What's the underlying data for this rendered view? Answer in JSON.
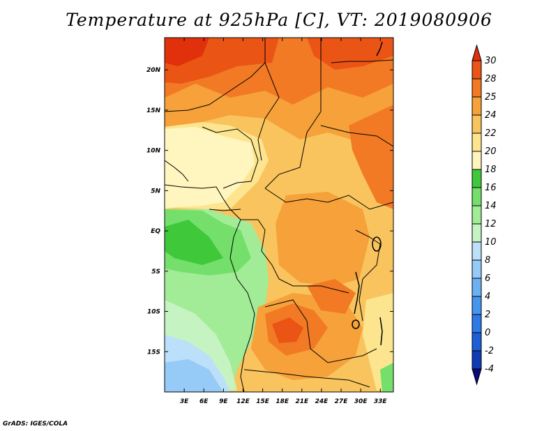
{
  "title": "Temperature at 925hPa [C], VT: 2019080906",
  "credit": "GrADS: IGES/COLA",
  "map": {
    "lon_range": [
      0,
      35
    ],
    "lat_range": [
      -20,
      24
    ],
    "lon_ticks": [
      {
        "value": 3,
        "label": "3E"
      },
      {
        "value": 6,
        "label": "6E"
      },
      {
        "value": 9,
        "label": "9E"
      },
      {
        "value": 12,
        "label": "12E"
      },
      {
        "value": 15,
        "label": "15E"
      },
      {
        "value": 18,
        "label": "18E"
      },
      {
        "value": 21,
        "label": "21E"
      },
      {
        "value": 24,
        "label": "24E"
      },
      {
        "value": 27,
        "label": "27E"
      },
      {
        "value": 30,
        "label": "30E"
      },
      {
        "value": 33,
        "label": "33E"
      }
    ],
    "lat_ticks": [
      {
        "value": 20,
        "label": "20N"
      },
      {
        "value": 15,
        "label": "15N"
      },
      {
        "value": 10,
        "label": "10N"
      },
      {
        "value": 5,
        "label": "5N"
      },
      {
        "value": 0,
        "label": "EQ"
      },
      {
        "value": -5,
        "label": "5S"
      },
      {
        "value": -10,
        "label": "10S"
      },
      {
        "value": -15,
        "label": "15S"
      }
    ]
  },
  "colorbar": {
    "labels": [
      "-4",
      "-2",
      "0",
      "2",
      "4",
      "6",
      "8",
      "10",
      "12",
      "14",
      "16",
      "18",
      "20",
      "22",
      "24",
      "25",
      "28",
      "30"
    ],
    "colors": [
      "#0a0a7a",
      "#0f3ab4",
      "#1a5fd6",
      "#2b7ae8",
      "#4596ee",
      "#6cb2f2",
      "#95cbf6",
      "#bcdffa",
      "#c6f3c2",
      "#a2ec98",
      "#74df6a",
      "#3ec83a",
      "#fff5bf",
      "#fde58f",
      "#f9c45e",
      "#f6a13a",
      "#f27a24",
      "#ea5415",
      "#e0310c"
    ]
  }
}
